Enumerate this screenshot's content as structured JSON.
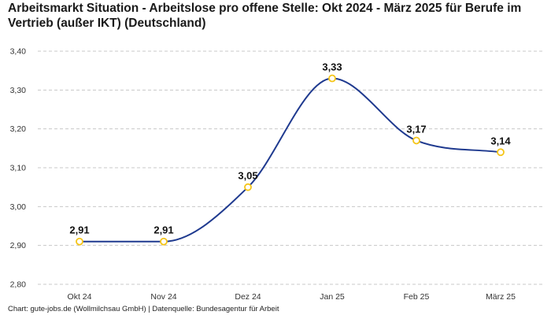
{
  "chart_data": {
    "type": "line",
    "title": "Arbeitsmarkt Situation - Arbeitslose pro offene Stelle: Okt 2024 - März 2025 für Berufe im Vertrieb (außer IKT) (Deutschland)",
    "categories": [
      "Okt 24",
      "Nov 24",
      "Dez 24",
      "Jan 25",
      "Feb 25",
      "März 25"
    ],
    "values": [
      2.91,
      2.91,
      3.05,
      3.33,
      3.17,
      3.14
    ],
    "data_labels": [
      "2,91",
      "2,91",
      "3,05",
      "3,33",
      "3,17",
      "3,14"
    ],
    "y_ticks": [
      2.8,
      2.9,
      3.0,
      3.1,
      3.2,
      3.3,
      3.4
    ],
    "y_tick_labels": [
      "2,80",
      "2,90",
      "3,00",
      "3,10",
      "3,20",
      "3,30",
      "3,40"
    ],
    "ylim": [
      2.8,
      3.4
    ],
    "grid": true,
    "line_color": "#1f3a8f",
    "marker_color": "#f5c518"
  },
  "source": "Chart: gute-jobs.de (Wollmilchsau GmbH) | Datenquelle: Bundesagentur für Arbeit"
}
